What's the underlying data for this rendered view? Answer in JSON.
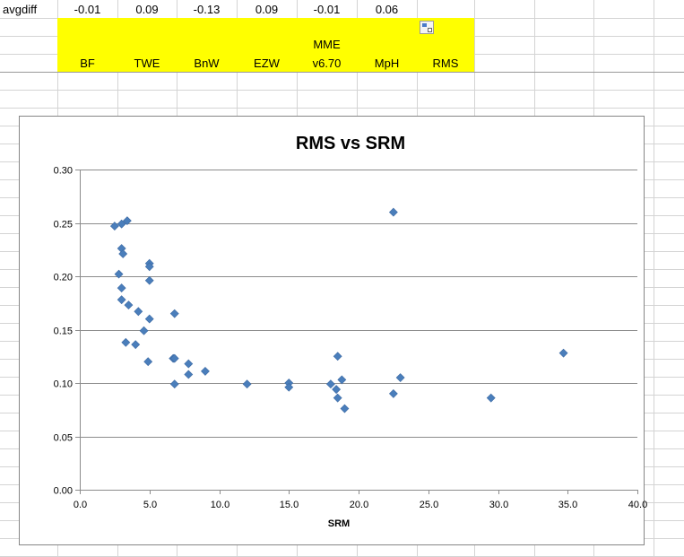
{
  "sheet": {
    "row1": {
      "label": "avgdiff",
      "values": [
        "-0.01",
        "0.09",
        "-0.13",
        "0.09",
        "-0.01",
        "0.06"
      ]
    },
    "header": {
      "group_label": "MME",
      "columns": [
        "BF",
        "TWE",
        "BnW",
        "EZW",
        "v6.70",
        "MpH",
        "RMS"
      ]
    },
    "highlight_color": "#ffff00"
  },
  "paste_options_icon": "paste-options-icon",
  "chart_data": {
    "type": "scatter",
    "title": "RMS vs SRM",
    "xlabel": "SRM",
    "ylabel": "",
    "xlim": [
      0,
      40
    ],
    "ylim": [
      0,
      0.3
    ],
    "x_ticks": [
      "0.0",
      "5.0",
      "10.0",
      "15.0",
      "20.0",
      "25.0",
      "30.0",
      "35.0",
      "40.0"
    ],
    "y_ticks": [
      "0.00",
      "0.05",
      "0.10",
      "0.15",
      "0.20",
      "0.25",
      "0.30"
    ],
    "grid": "horizontal",
    "marker_color": "#4a7ebb",
    "series": [
      {
        "points": [
          [
            2.5,
            0.247
          ],
          [
            3.0,
            0.249
          ],
          [
            3.4,
            0.252
          ],
          [
            3.0,
            0.226
          ],
          [
            3.1,
            0.221
          ],
          [
            2.8,
            0.202
          ],
          [
            3.0,
            0.189
          ],
          [
            3.0,
            0.178
          ],
          [
            3.5,
            0.173
          ],
          [
            4.2,
            0.167
          ],
          [
            3.3,
            0.138
          ],
          [
            4.0,
            0.136
          ],
          [
            4.6,
            0.149
          ],
          [
            5.0,
            0.212
          ],
          [
            5.0,
            0.209
          ],
          [
            5.0,
            0.196
          ],
          [
            5.0,
            0.16
          ],
          [
            4.9,
            0.12
          ],
          [
            6.8,
            0.165
          ],
          [
            6.7,
            0.123
          ],
          [
            6.8,
            0.123
          ],
          [
            6.8,
            0.099
          ],
          [
            7.8,
            0.118
          ],
          [
            7.8,
            0.108
          ],
          [
            9.0,
            0.111
          ],
          [
            12.0,
            0.099
          ],
          [
            15.0,
            0.1
          ],
          [
            15.0,
            0.096
          ],
          [
            18.0,
            0.099
          ],
          [
            18.4,
            0.094
          ],
          [
            18.5,
            0.125
          ],
          [
            18.5,
            0.086
          ],
          [
            18.8,
            0.103
          ],
          [
            19.0,
            0.076
          ],
          [
            22.5,
            0.26
          ],
          [
            22.5,
            0.09
          ],
          [
            23.0,
            0.105
          ],
          [
            29.5,
            0.086
          ],
          [
            34.7,
            0.128
          ]
        ]
      }
    ]
  }
}
